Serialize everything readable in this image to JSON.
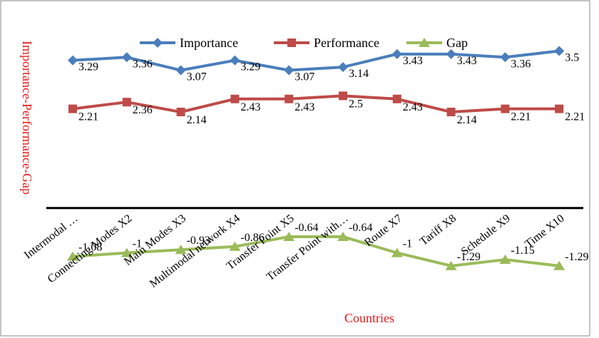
{
  "chart_data": {
    "type": "line",
    "title": "",
    "xlabel": "Countries",
    "ylabel": "Importance-Performance-Gap",
    "categories": [
      "Intermodal …",
      "Connecting Modes X2",
      "Main Modes X3",
      "Multimodal network X4",
      "Transfer Point X5",
      "Transfer Point with…",
      "Route X7",
      "Tariff X8",
      "Schedule X9",
      "Time X10"
    ],
    "series": [
      {
        "name": "Importance",
        "color": "#4A7EBB",
        "marker": "diamond",
        "values": [
          3.29,
          3.36,
          3.07,
          3.29,
          3.07,
          3.14,
          3.43,
          3.43,
          3.36,
          3.5
        ],
        "labels": [
          "3.29",
          "3.36",
          "3.07",
          "3.29",
          "3.07",
          "3.14",
          "3.43",
          "3.43",
          "3.36",
          "3.5"
        ]
      },
      {
        "name": "Performance",
        "color": "#BE4B48",
        "marker": "square",
        "values": [
          2.21,
          2.36,
          2.14,
          2.43,
          2.43,
          2.5,
          2.43,
          2.14,
          2.21,
          2.21
        ],
        "labels": [
          "2.21",
          "2.36",
          "2.14",
          "2.43",
          "2.43",
          "2.5",
          "2.43",
          "2.14",
          "2.21",
          "2.21"
        ]
      },
      {
        "name": "Gap",
        "color": "#9BBB59",
        "marker": "triangle",
        "values": [
          -1.08,
          -1.0,
          -0.93,
          -0.86,
          -0.64,
          -0.64,
          -1.0,
          -1.29,
          -1.15,
          -1.29
        ],
        "labels": [
          "-1.08",
          "-1",
          "-0.93",
          "-0.86",
          "-0.64",
          "-0.64",
          "-1",
          "-1.29",
          "-1.15",
          "-1.29"
        ]
      }
    ],
    "ylim": [
      -2.5,
      4.0
    ],
    "grid": false,
    "legend": "top"
  }
}
